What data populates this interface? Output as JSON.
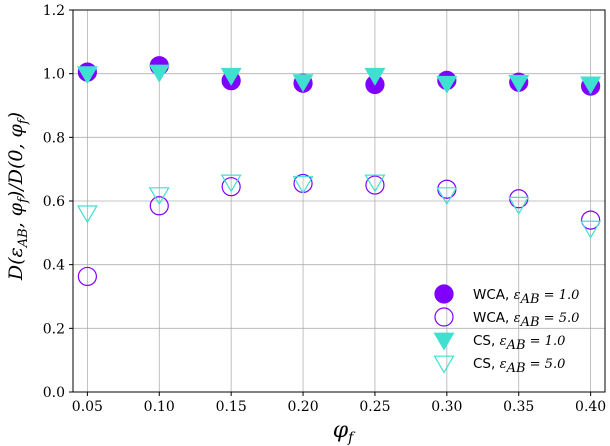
{
  "chart_data": {
    "type": "scatter",
    "xlabel": "φ_f",
    "ylabel": "D(ε_AB, φ_f)/D(0, φ_f)",
    "ylabel_parts": {
      "pre": "D(",
      "eps": "ε",
      "sub": "AB",
      "mid": ", ",
      "phi1": "φ",
      "f1": "f",
      "div": ")/D(0, ",
      "phi2": "φ",
      "f2": "f",
      "post": ")"
    },
    "xlabel_parts": {
      "phi": "φ",
      "f": "f"
    },
    "xlim": [
      0.04,
      0.41
    ],
    "ylim": [
      0.0,
      1.2
    ],
    "grid": true,
    "legend_position": "lower-right",
    "x": [
      0.05,
      0.1,
      0.15,
      0.2,
      0.25,
      0.3,
      0.35,
      0.4
    ],
    "x_ticks": [
      "0.05",
      "0.10",
      "0.15",
      "0.20",
      "0.25",
      "0.30",
      "0.35",
      "0.40"
    ],
    "y_ticks": [
      "0.0",
      "0.2",
      "0.4",
      "0.6",
      "0.8",
      "1.0",
      "1.2"
    ],
    "series": [
      {
        "name": "WCA, ε_AB = 1.0",
        "label_pre": "WCA, ",
        "label_math": "ε",
        "label_sub": "AB",
        "label_val": " = 1.0",
        "marker": "circle",
        "filled": true,
        "color": "#7f00ff",
        "values": [
          1.005,
          1.025,
          0.978,
          0.97,
          0.966,
          0.979,
          0.973,
          0.961
        ]
      },
      {
        "name": "WCA, ε_AB = 5.0",
        "label_pre": "WCA, ",
        "label_math": "ε",
        "label_sub": "AB",
        "label_val": " = 5.0",
        "marker": "circle",
        "filled": false,
        "color": "#7f00ff",
        "values": [
          0.363,
          0.585,
          0.645,
          0.655,
          0.65,
          0.637,
          0.607,
          0.54
        ]
      },
      {
        "name": "CS, ε_AB = 1.0",
        "label_pre": "CS, ",
        "label_math": "ε",
        "label_sub": "AB",
        "label_val": " = 1.0",
        "marker": "triangle-down",
        "filled": true,
        "color": "#40e0d0",
        "values": [
          1.0,
          1.005,
          0.995,
          0.975,
          0.995,
          0.97,
          0.973,
          0.968
        ]
      },
      {
        "name": "CS, ε_AB = 5.0",
        "label_pre": "CS, ",
        "label_math": "ε",
        "label_sub": "AB",
        "label_val": " = 5.0",
        "marker": "triangle-down",
        "filled": false,
        "color": "#40e0d0",
        "values": [
          0.563,
          0.62,
          0.66,
          0.655,
          0.66,
          0.62,
          0.59,
          0.515
        ]
      }
    ]
  }
}
